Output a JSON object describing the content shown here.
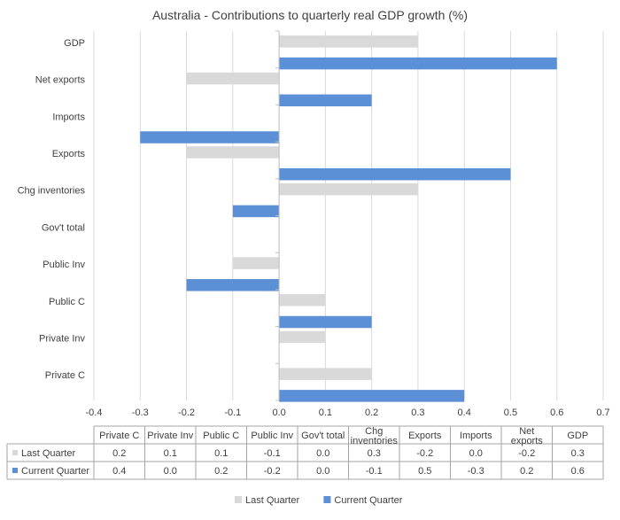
{
  "chart_data": {
    "type": "bar",
    "orientation": "horizontal",
    "title": "Australia - Contributions to quarterly real GDP growth (%)",
    "categories": [
      "Private C",
      "Private Inv",
      "Public C",
      "Public Inv",
      "Gov't total",
      "Chg inventories",
      "Exports",
      "Imports",
      "Net exports",
      "GDP"
    ],
    "table_headers": [
      "Private C",
      "Private Inv",
      "Public C",
      "Public Inv",
      "Gov't total",
      "Chg\ninventories",
      "Exports",
      "Imports",
      "Net\nexports",
      "GDP"
    ],
    "series": [
      {
        "name": "Last Quarter",
        "color": "#d9d9d9",
        "values": [
          0.2,
          0.1,
          0.1,
          -0.1,
          0.0,
          0.3,
          -0.2,
          0.0,
          -0.2,
          0.3
        ],
        "display": [
          "0.2",
          "0.1",
          "0.1",
          "-0.1",
          "0.0",
          "0.3",
          "-0.2",
          "0.0",
          "-0.2",
          "0.3"
        ]
      },
      {
        "name": "Current Quarter",
        "color": "#5b8fd6",
        "values": [
          0.4,
          0.0,
          0.2,
          -0.2,
          0.0,
          -0.1,
          0.5,
          -0.3,
          0.2,
          0.6
        ],
        "display": [
          "0.4",
          "0.0",
          "0.2",
          "-0.2",
          "0.0",
          "-0.1",
          "0.5",
          "-0.3",
          "0.2",
          "0.6"
        ]
      }
    ],
    "xlim": [
      -0.4,
      0.7
    ],
    "xticks": [
      -0.4,
      -0.3,
      -0.2,
      -0.1,
      0,
      0.1,
      0.2,
      0.3,
      0.4,
      0.5,
      0.6,
      0.7
    ],
    "xtick_labels": [
      "-0.4",
      "-0.3",
      "-0.2",
      "-0.1",
      "0.0",
      "0.1",
      "0.2",
      "0.3",
      "0.4",
      "0.5",
      "0.6",
      "0.7"
    ],
    "grid": "vertical",
    "legend_position": "bottom",
    "data_table": true
  }
}
